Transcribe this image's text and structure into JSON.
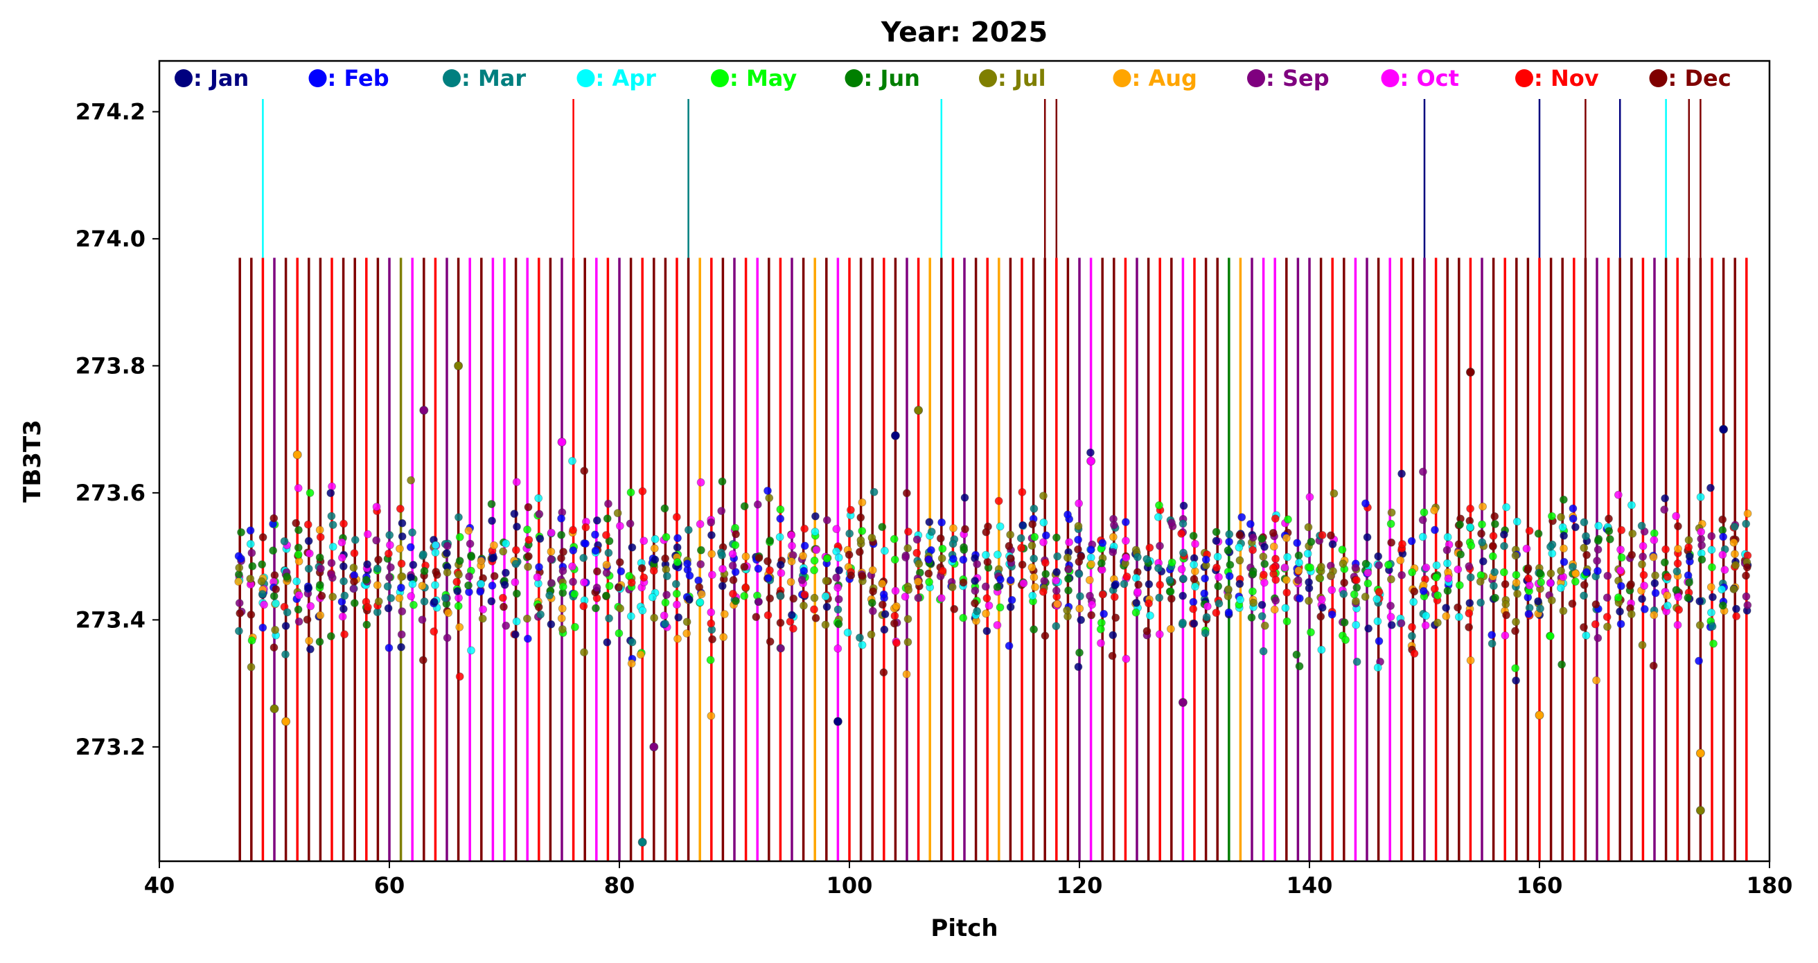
{
  "chart_data": {
    "type": "scatter",
    "title": "Year: 2025",
    "xlabel": "Pitch",
    "ylabel": "TB3T3",
    "xlim": [
      40,
      180
    ],
    "ylim": [
      273.02,
      274.28
    ],
    "xticks": [
      40,
      60,
      80,
      100,
      120,
      140,
      160,
      180
    ],
    "xtick_labels": [
      "40",
      "60",
      "80",
      "100",
      "120",
      "140",
      "160",
      "180"
    ],
    "yticks": [
      273.2,
      273.4,
      273.6,
      273.8,
      274.0,
      274.2
    ],
    "ytick_labels": [
      "273.2",
      "273.4",
      "273.6",
      "273.8",
      "274.0",
      "274.2"
    ],
    "grid": false,
    "legend_position": "top",
    "series": [
      {
        "name": ": Jan",
        "color": "#00007f"
      },
      {
        "name": ": Feb",
        "color": "#0000ff"
      },
      {
        "name": ": Mar",
        "color": "#007f7f"
      },
      {
        "name": ": Apr",
        "color": "#00ffff"
      },
      {
        "name": ": May",
        "color": "#00ff00"
      },
      {
        "name": ": Jun",
        "color": "#007f00"
      },
      {
        "name": ": Jul",
        "color": "#7f7f00"
      },
      {
        "name": ": Aug",
        "color": "#ffa500"
      },
      {
        "name": ": Sep",
        "color": "#7f007f"
      },
      {
        "name": ": Oct",
        "color": "#ff00ff"
      },
      {
        "name": ": Nov",
        "color": "#ff0000"
      },
      {
        "name": ": Dec",
        "color": "#7f0000"
      }
    ],
    "pitch_range": [
      47,
      178
    ],
    "error_bars": {
      "typical_lower": 273.02,
      "typical_upper": 273.97,
      "tall_lines": [
        {
          "x": 49,
          "upper": 274.22,
          "color": "#00ffff"
        },
        {
          "x": 76,
          "upper": 274.22,
          "color": "#ff0000"
        },
        {
          "x": 86,
          "upper": 274.22,
          "color": "#007f7f"
        },
        {
          "x": 108,
          "upper": 274.22,
          "color": "#00ffff"
        },
        {
          "x": 117,
          "upper": 274.22,
          "color": "#7f0000"
        },
        {
          "x": 118,
          "upper": 274.22,
          "color": "#7f0000"
        },
        {
          "x": 150,
          "upper": 274.22,
          "color": "#00007f"
        },
        {
          "x": 160,
          "upper": 274.22,
          "color": "#00007f"
        },
        {
          "x": 164,
          "upper": 274.22,
          "color": "#7f0000"
        },
        {
          "x": 167,
          "upper": 274.22,
          "color": "#00007f"
        },
        {
          "x": 171,
          "upper": 274.22,
          "color": "#00ffff"
        },
        {
          "x": 173,
          "upper": 274.22,
          "color": "#7f0000"
        },
        {
          "x": 174,
          "upper": 274.22,
          "color": "#7f0000"
        }
      ],
      "colored_lines": [
        {
          "x": 61,
          "color": "#7f7f00"
        },
        {
          "x": 62,
          "color": "#ff00ff"
        },
        {
          "x": 67,
          "color": "#ff00ff"
        },
        {
          "x": 69,
          "color": "#ff00ff"
        },
        {
          "x": 70,
          "color": "#ff00ff"
        },
        {
          "x": 72,
          "color": "#ff00ff"
        },
        {
          "x": 76,
          "color": "#ff0000"
        },
        {
          "x": 78,
          "color": "#ff00ff"
        },
        {
          "x": 87,
          "color": "#ffa500"
        },
        {
          "x": 92,
          "color": "#ff00ff"
        },
        {
          "x": 97,
          "color": "#ffa500"
        },
        {
          "x": 99,
          "color": "#ff00ff"
        },
        {
          "x": 107,
          "color": "#ffa500"
        },
        {
          "x": 113,
          "color": "#ffa500"
        },
        {
          "x": 121,
          "color": "#ff00ff"
        },
        {
          "x": 129,
          "color": "#ff00ff"
        },
        {
          "x": 133,
          "color": "#007f00"
        },
        {
          "x": 134,
          "color": "#ffa500"
        },
        {
          "x": 136,
          "color": "#ff00ff"
        },
        {
          "x": 137,
          "color": "#ff00ff"
        },
        {
          "x": 139,
          "color": "#7f007f"
        },
        {
          "x": 144,
          "color": "#ff00ff"
        },
        {
          "x": 145,
          "color": "#7f007f"
        },
        {
          "x": 147,
          "color": "#ff00ff"
        }
      ],
      "default_colors": [
        "#7f0000",
        "#ff0000",
        "#7f007f"
      ]
    },
    "notable_points": [
      {
        "x": 66,
        "y": 273.8,
        "color": "#7f7f00"
      },
      {
        "x": 63,
        "y": 273.73,
        "color": "#7f007f"
      },
      {
        "x": 106,
        "y": 273.73,
        "color": "#7f7f00"
      },
      {
        "x": 154,
        "y": 273.79,
        "color": "#7f0000"
      },
      {
        "x": 104,
        "y": 273.69,
        "color": "#00007f"
      },
      {
        "x": 176,
        "y": 273.7,
        "color": "#00007f"
      },
      {
        "x": 75,
        "y": 273.68,
        "color": "#ff00ff"
      },
      {
        "x": 121,
        "y": 273.65,
        "color": "#ff00ff"
      },
      {
        "x": 52,
        "y": 273.66,
        "color": "#ffa500"
      },
      {
        "x": 174,
        "y": 273.1,
        "color": "#7f7f00"
      },
      {
        "x": 82,
        "y": 273.05,
        "color": "#007f7f"
      },
      {
        "x": 83,
        "y": 273.2,
        "color": "#7f007f"
      },
      {
        "x": 174,
        "y": 273.19,
        "color": "#ffa500"
      },
      {
        "x": 99,
        "y": 273.24,
        "color": "#00007f"
      },
      {
        "x": 50,
        "y": 273.26,
        "color": "#7f7f00"
      },
      {
        "x": 51,
        "y": 273.24,
        "color": "#ffa500"
      },
      {
        "x": 129,
        "y": 273.27,
        "color": "#7f007f"
      },
      {
        "x": 160,
        "y": 273.25,
        "color": "#ffa500"
      }
    ],
    "scatter_band": {
      "center": 273.47,
      "spread": 0.055
    }
  }
}
